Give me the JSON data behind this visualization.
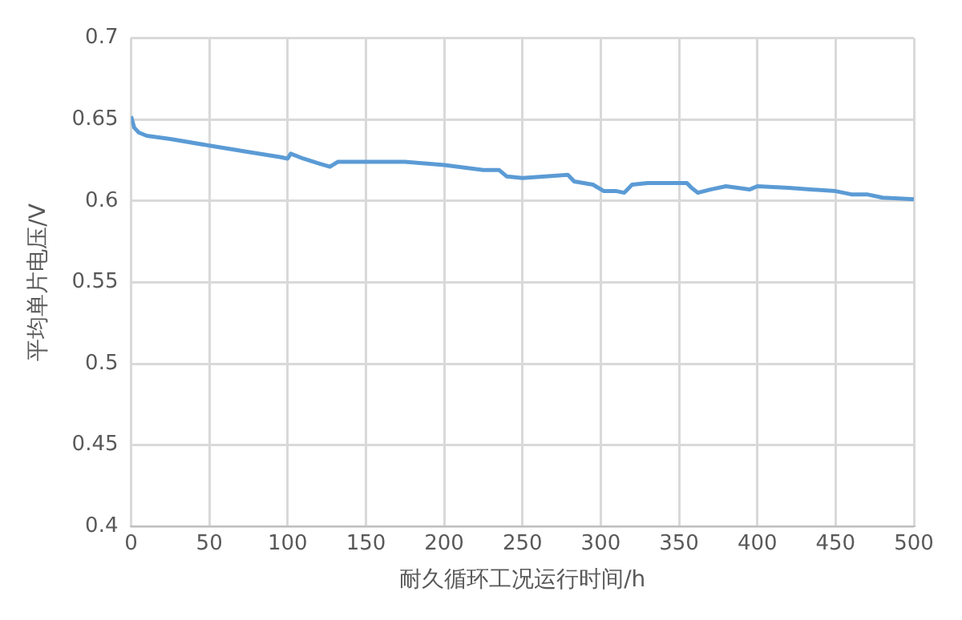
{
  "chart_data": {
    "type": "line",
    "xlabel": "耐久循环工况运行时间/h",
    "ylabel": "平均单片电压/V",
    "xlim": [
      0,
      500
    ],
    "xticks": [
      0,
      50,
      100,
      150,
      200,
      250,
      300,
      350,
      400,
      450,
      500
    ],
    "ylim": [
      0.4,
      0.7
    ],
    "yticks": [
      {
        "value": 0.4,
        "label": "0.4"
      },
      {
        "value": 0.45,
        "label": "0.45"
      },
      {
        "value": 0.5,
        "label": "0.5"
      },
      {
        "value": 0.55,
        "label": "0.55"
      },
      {
        "value": 0.6,
        "label": "0.6"
      },
      {
        "value": 0.65,
        "label": "0.65"
      },
      {
        "value": 0.7,
        "label": "0.7"
      }
    ],
    "grid": true,
    "marker": "none",
    "series": [
      {
        "color": "#5b9bd5",
        "x": [
          0,
          2,
          5,
          10,
          25,
          50,
          75,
          95,
          100,
          102,
          110,
          120,
          127,
          132,
          150,
          175,
          200,
          225,
          235,
          240,
          250,
          279,
          283,
          295,
          302,
          310,
          315,
          320,
          330,
          355,
          358,
          362,
          370,
          380,
          395,
          400,
          420,
          450,
          460,
          470,
          480,
          500
        ],
        "values": [
          0.652,
          0.645,
          0.642,
          0.64,
          0.638,
          0.634,
          0.63,
          0.627,
          0.626,
          0.629,
          0.626,
          0.623,
          0.621,
          0.624,
          0.624,
          0.624,
          0.622,
          0.619,
          0.619,
          0.615,
          0.614,
          0.616,
          0.612,
          0.61,
          0.606,
          0.606,
          0.605,
          0.61,
          0.611,
          0.611,
          0.608,
          0.605,
          0.607,
          0.609,
          0.607,
          0.609,
          0.608,
          0.606,
          0.604,
          0.604,
          0.602,
          0.601
        ]
      }
    ]
  }
}
